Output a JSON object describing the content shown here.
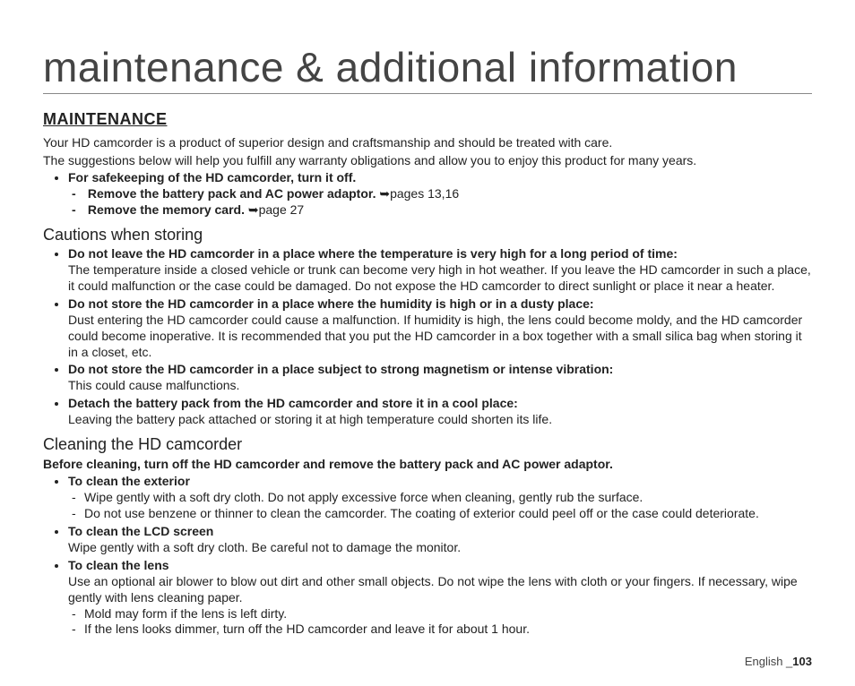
{
  "title": "maintenance & additional information",
  "heading": "MAINTENANCE",
  "intro1": "Your HD camcorder is a product of superior design and craftsmanship and should be treated with care.",
  "intro2": "The suggestions below will help you fulfill any warranty obligations and allow you to enjoy this product for many years.",
  "safekeep": "For safekeeping of the HD camcorder, turn it off.",
  "safe1a": "Remove the battery pack and AC power adaptor. ",
  "safe1b": "➥pages 13,16",
  "safe2a": "Remove the memory card. ",
  "safe2b": "➥page 27",
  "cautions_heading": "Cautions when storing",
  "c1_head": "Do not leave the HD camcorder in a place where the temperature is very high for a long period of time:",
  "c1_body": "The temperature inside a closed vehicle or trunk can become very high in hot weather. If you leave the HD camcorder in such a place, it could malfunction or the case could be damaged. Do not expose the HD camcorder to direct sunlight or place it near a heater.",
  "c2_head": "Do not store the HD camcorder in a place where the humidity is high or in a dusty place:",
  "c2_body": "Dust entering the HD camcorder could cause a malfunction. If humidity is high, the lens could become moldy, and the HD camcorder could become inoperative. It is recommended that you put the HD camcorder in a box together with a small silica bag when storing it in a closet, etc.",
  "c3_head": "Do not store the HD camcorder in a place subject to strong magnetism or intense vibration:",
  "c3_body": "This could cause malfunctions.",
  "c4_head": "Detach the battery pack from the HD camcorder and store it in a cool place:",
  "c4_body": "Leaving the battery pack attached or storing it at high temperature could shorten its life.",
  "clean_heading": "Cleaning the HD camcorder",
  "clean_note": "Before cleaning, turn off the HD camcorder and remove the battery pack and AC power adaptor.",
  "cl1_head": "To clean the exterior",
  "cl1_a": "Wipe gently with a soft dry cloth. Do not apply excessive force when cleaning, gently rub the surface.",
  "cl1_b": "Do not use benzene or thinner to clean the camcorder. The coating of exterior could peel off or the case could deteriorate.",
  "cl2_head": "To clean the LCD screen",
  "cl2_body": "Wipe gently with a soft dry cloth. Be careful not to damage the monitor.",
  "cl3_head": "To clean the lens",
  "cl3_body": "Use an optional air blower to blow out dirt and other small objects. Do not wipe the lens with cloth or your fingers. If necessary, wipe gently with lens cleaning paper.",
  "cl3_a": "Mold may form if the lens is left dirty.",
  "cl3_b": "If the lens looks dimmer, turn off the HD camcorder and leave it for about 1 hour.",
  "footer_lang": "English _",
  "footer_page": "103"
}
